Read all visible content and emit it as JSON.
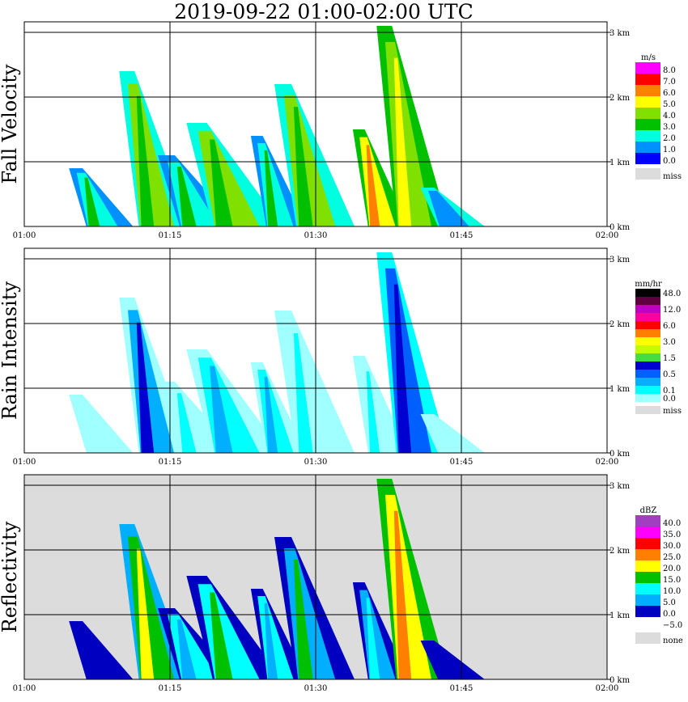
{
  "title": "2019-09-22   01:00-02:00 UTC",
  "x_ticks": [
    "01:00",
    "01:15",
    "01:30",
    "01:45",
    "02:00"
  ],
  "y_ticks": [
    "0 km",
    "1 km",
    "2 km",
    "3 km"
  ],
  "chart_data": [
    {
      "type": "heatmap",
      "ylabel": "Fall Velocity",
      "xlim": [
        "01:00",
        "02:00"
      ],
      "ylim_km": [
        0,
        3
      ],
      "legend_title": "m/s",
      "legend": [
        {
          "label": "8.0",
          "color": "#ff00ff"
        },
        {
          "label": "7.0",
          "color": "#ff0000"
        },
        {
          "label": "6.0",
          "color": "#ff8000"
        },
        {
          "label": "5.0",
          "color": "#ffff00"
        },
        {
          "label": "4.0",
          "color": "#80e000"
        },
        {
          "label": "3.0",
          "color": "#00c000"
        },
        {
          "label": "2.0",
          "color": "#00ffe0"
        },
        {
          "label": "1.0",
          "color": "#0090ff"
        },
        {
          "label": "0.0",
          "color": "#0000ff"
        },
        {
          "label": "miss",
          "color": "#dcdcdc"
        }
      ],
      "missing_background": false,
      "echoes": [
        {
          "t0": 4.8,
          "t1": 8.8,
          "top": 0.9,
          "core": "#00c000",
          "mid": "#00ffe0",
          "edge": "#0090ff"
        },
        {
          "t0": 10.0,
          "t1": 14.5,
          "top": 2.4,
          "core": "#00c000",
          "mid": "#80e000",
          "edge": "#00ffe0"
        },
        {
          "t0": 14.0,
          "t1": 19.0,
          "top": 1.1,
          "core": "#00c000",
          "mid": "#00ffe0",
          "edge": "#0090ff"
        },
        {
          "t0": 17.0,
          "t1": 23.0,
          "top": 1.6,
          "core": "#00c000",
          "mid": "#80e000",
          "edge": "#00ffe0"
        },
        {
          "t0": 23.5,
          "t1": 27.0,
          "top": 1.4,
          "core": "#00c000",
          "mid": "#00ffe0",
          "edge": "#0090ff"
        },
        {
          "t0": 26.0,
          "t1": 31.0,
          "top": 2.2,
          "core": "#00c000",
          "mid": "#80e000",
          "edge": "#00ffe0"
        },
        {
          "t0": 34.0,
          "t1": 37.5,
          "top": 1.5,
          "core": "#ff8000",
          "mid": "#ffff00",
          "edge": "#00c000"
        },
        {
          "t0": 36.5,
          "t1": 41.0,
          "top": 3.1,
          "core": "#ffff00",
          "mid": "#80e000",
          "edge": "#00c000"
        },
        {
          "t0": 41.0,
          "t1": 45.0,
          "top": 0.6,
          "core": "#0090ff",
          "mid": "#0090ff",
          "edge": "#00ffe0"
        }
      ]
    },
    {
      "type": "heatmap",
      "ylabel": "Rain Intensity",
      "xlim": [
        "01:00",
        "02:00"
      ],
      "ylim_km": [
        0,
        3
      ],
      "legend_title": "mm/hr",
      "legend": [
        {
          "label": "48.0",
          "color": "#000000"
        },
        {
          "label": "",
          "color": "#600040"
        },
        {
          "label": "12.0",
          "color": "#c000c0"
        },
        {
          "label": "",
          "color": "#ff00a0"
        },
        {
          "label": "6.0",
          "color": "#ff0000"
        },
        {
          "label": "",
          "color": "#ff8000"
        },
        {
          "label": "3.0",
          "color": "#ffff00"
        },
        {
          "label": "",
          "color": "#c0ff00"
        },
        {
          "label": "1.5",
          "color": "#40e040"
        },
        {
          "label": "",
          "color": "#0000d0"
        },
        {
          "label": "0.5",
          "color": "#0060ff"
        },
        {
          "label": "",
          "color": "#00b0ff"
        },
        {
          "label": "0.1",
          "color": "#00ffff"
        },
        {
          "label": "0.0",
          "color": "#a0ffff"
        },
        {
          "label": "miss",
          "color": "#dcdcdc"
        }
      ],
      "missing_background": false,
      "echoes": [
        {
          "t0": 4.8,
          "t1": 8.8,
          "top": 0.9,
          "core": "#a0ffff",
          "mid": "#a0ffff",
          "edge": "#a0ffff"
        },
        {
          "t0": 10.0,
          "t1": 14.5,
          "top": 2.4,
          "core": "#0000d0",
          "mid": "#00b0ff",
          "edge": "#a0ffff"
        },
        {
          "t0": 14.0,
          "t1": 19.0,
          "top": 1.1,
          "core": "#00ffff",
          "mid": "#a0ffff",
          "edge": "#a0ffff"
        },
        {
          "t0": 17.0,
          "t1": 23.0,
          "top": 1.6,
          "core": "#00b0ff",
          "mid": "#00ffff",
          "edge": "#a0ffff"
        },
        {
          "t0": 23.5,
          "t1": 27.0,
          "top": 1.4,
          "core": "#00b0ff",
          "mid": "#00ffff",
          "edge": "#a0ffff"
        },
        {
          "t0": 26.0,
          "t1": 31.0,
          "top": 2.2,
          "core": "#00ffff",
          "mid": "#a0ffff",
          "edge": "#a0ffff"
        },
        {
          "t0": 34.0,
          "t1": 37.5,
          "top": 1.5,
          "core": "#00ffff",
          "mid": "#a0ffff",
          "edge": "#a0ffff"
        },
        {
          "t0": 36.5,
          "t1": 41.0,
          "top": 3.1,
          "core": "#0000d0",
          "mid": "#0060ff",
          "edge": "#00ffff"
        },
        {
          "t0": 41.0,
          "t1": 45.0,
          "top": 0.6,
          "core": "#a0ffff",
          "mid": "#a0ffff",
          "edge": "#a0ffff"
        }
      ]
    },
    {
      "type": "heatmap",
      "ylabel": "Reflectivity",
      "xlim": [
        "01:00",
        "02:00"
      ],
      "ylim_km": [
        0,
        3
      ],
      "legend_title": "dBZ",
      "legend": [
        {
          "label": "40.0",
          "color": "#a040c0"
        },
        {
          "label": "35.0",
          "color": "#ff00ff"
        },
        {
          "label": "30.0",
          "color": "#ff0000"
        },
        {
          "label": "25.0",
          "color": "#ff8000"
        },
        {
          "label": "20.0",
          "color": "#ffff00"
        },
        {
          "label": "15.0",
          "color": "#00c000"
        },
        {
          "label": "10.0",
          "color": "#00ffff"
        },
        {
          "label": "5.0",
          "color": "#00b0ff"
        },
        {
          "label": "0.0",
          "color": "#0000c0"
        },
        {
          "label": "−5.0",
          "color": "#ffffff"
        },
        {
          "label": "none",
          "color": "#dcdcdc"
        }
      ],
      "missing_background": true,
      "echoes": [
        {
          "t0": 4.8,
          "t1": 8.8,
          "top": 0.9,
          "core": "#0000c0",
          "mid": "#0000c0",
          "edge": "#0000c0"
        },
        {
          "t0": 10.0,
          "t1": 14.5,
          "top": 2.4,
          "core": "#ffff00",
          "mid": "#00c000",
          "edge": "#00b0ff"
        },
        {
          "t0": 14.0,
          "t1": 19.0,
          "top": 1.1,
          "core": "#00b0ff",
          "mid": "#00ffff",
          "edge": "#0000c0"
        },
        {
          "t0": 17.0,
          "t1": 23.0,
          "top": 1.6,
          "core": "#00c000",
          "mid": "#00ffff",
          "edge": "#0000c0"
        },
        {
          "t0": 23.5,
          "t1": 27.0,
          "top": 1.4,
          "core": "#00b0ff",
          "mid": "#00ffff",
          "edge": "#0000c0"
        },
        {
          "t0": 26.0,
          "t1": 31.0,
          "top": 2.2,
          "core": "#00c000",
          "mid": "#00b0ff",
          "edge": "#0000c0"
        },
        {
          "t0": 34.0,
          "t1": 37.5,
          "top": 1.5,
          "core": "#00ffff",
          "mid": "#00b0ff",
          "edge": "#0000c0"
        },
        {
          "t0": 36.5,
          "t1": 41.0,
          "top": 3.1,
          "core": "#ff8000",
          "mid": "#ffff00",
          "edge": "#00c000"
        },
        {
          "t0": 41.0,
          "t1": 45.0,
          "top": 0.6,
          "core": "#0000c0",
          "mid": "#0000c0",
          "edge": "#0000c0"
        }
      ]
    }
  ]
}
